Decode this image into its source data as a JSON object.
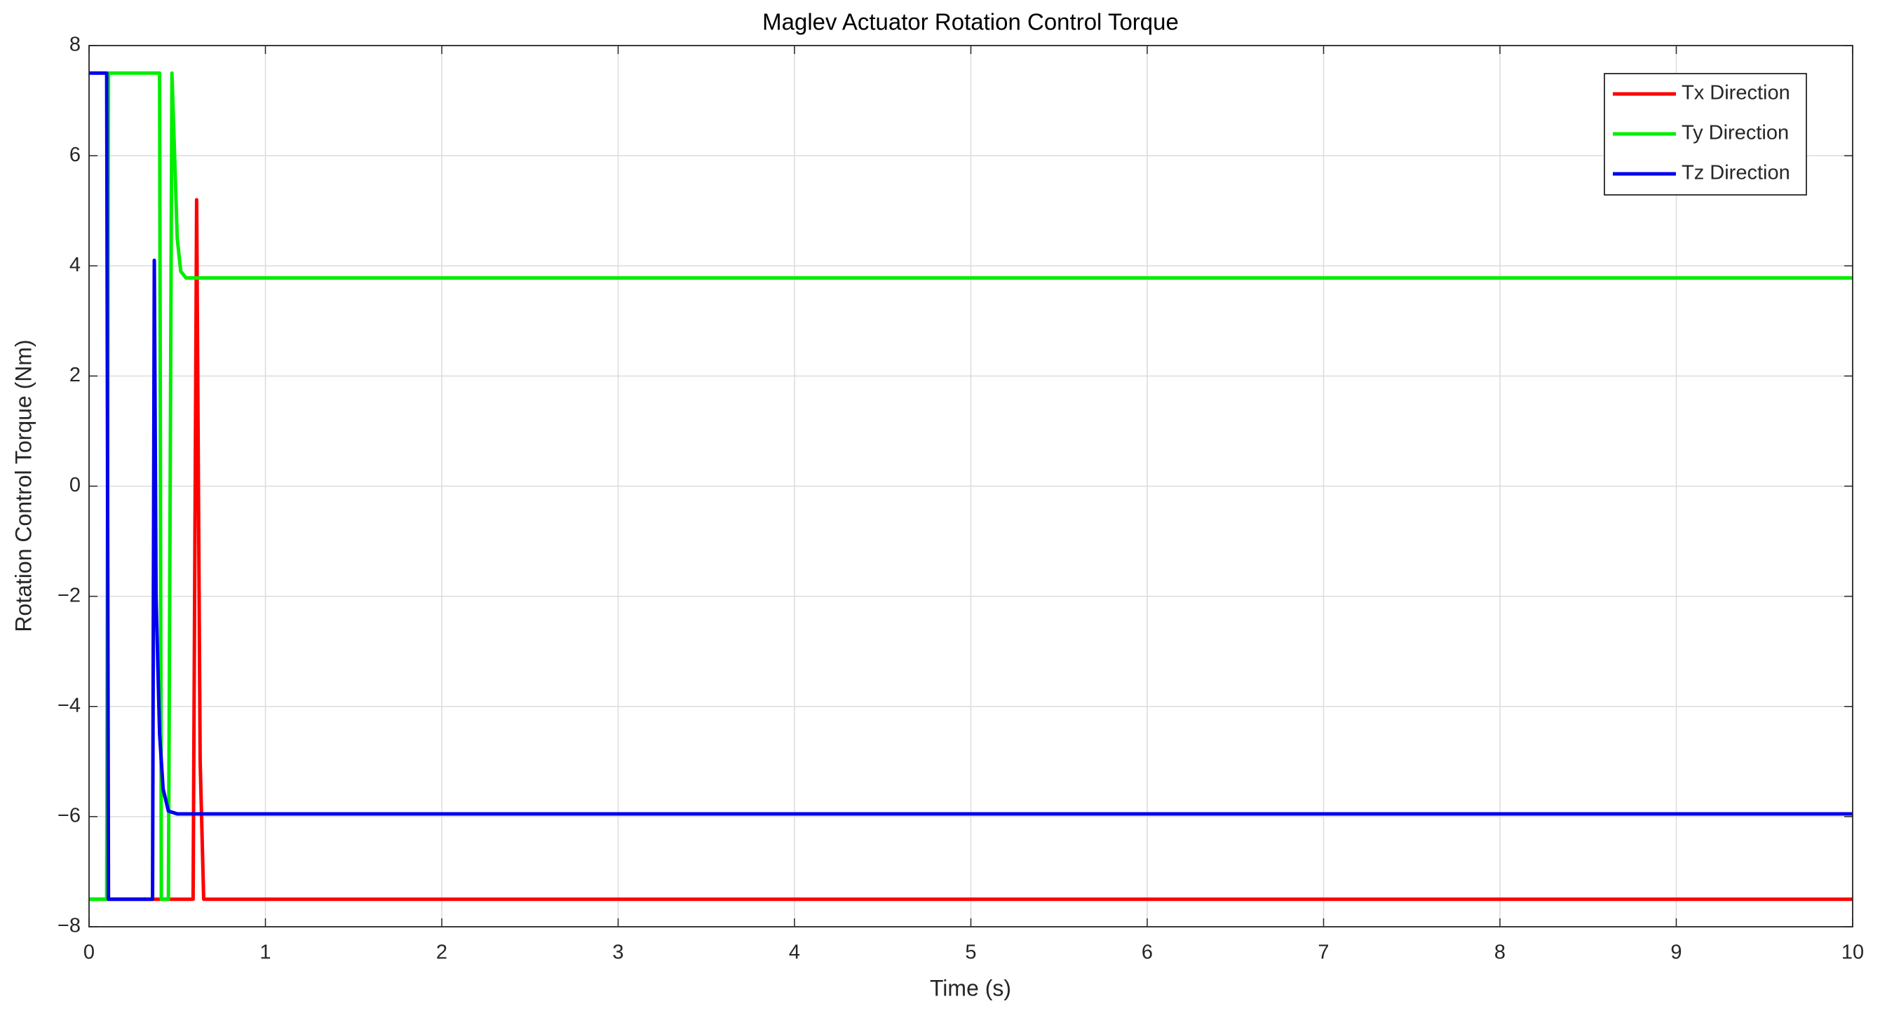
{
  "chart_data": {
    "type": "line",
    "title": "Maglev Actuator Rotation Control Torque",
    "x_label": "Time (s)",
    "y_label": "Rotation Control Torque (Nm)",
    "xlim": [
      0,
      10
    ],
    "xticks": [
      0,
      1,
      2,
      3,
      4,
      5,
      6,
      7,
      8,
      9,
      10
    ],
    "ylim": [
      -8,
      8
    ],
    "yticks": [
      {
        "value": -8,
        "label": "−8"
      },
      {
        "value": -6,
        "label": "−6"
      },
      {
        "value": -4,
        "label": "−4"
      },
      {
        "value": -2,
        "label": "−2"
      },
      0,
      2,
      4,
      6,
      8
    ],
    "grid": true,
    "legend": "upper-right",
    "series": [
      {
        "name": "Tx Direction",
        "color": "#ff0000",
        "x": [
          0,
          0.59,
          0.61,
          0.63,
          0.65,
          10
        ],
        "values": [
          -7.5,
          -7.5,
          5.2,
          -5,
          -7.5,
          -7.5
        ]
      },
      {
        "name": "Ty Direction",
        "color": "#00ee00",
        "x": [
          0,
          0.1,
          0.11,
          0.4,
          0.41,
          0.45,
          0.47,
          0.48,
          0.5,
          0.52,
          0.55,
          10
        ],
        "values": [
          -7.5,
          -7.5,
          7.5,
          7.5,
          -7.5,
          -7.5,
          7.5,
          6.5,
          4.5,
          3.9,
          3.78,
          3.78
        ]
      },
      {
        "name": "Tz Direction",
        "color": "#0000ee",
        "x": [
          0,
          0.1,
          0.11,
          0.36,
          0.37,
          0.38,
          0.4,
          0.42,
          0.45,
          0.5,
          10
        ],
        "values": [
          7.5,
          7.5,
          -7.5,
          -7.5,
          4.1,
          -2,
          -4.5,
          -5.5,
          -5.9,
          -5.95,
          -5.95
        ]
      }
    ]
  }
}
